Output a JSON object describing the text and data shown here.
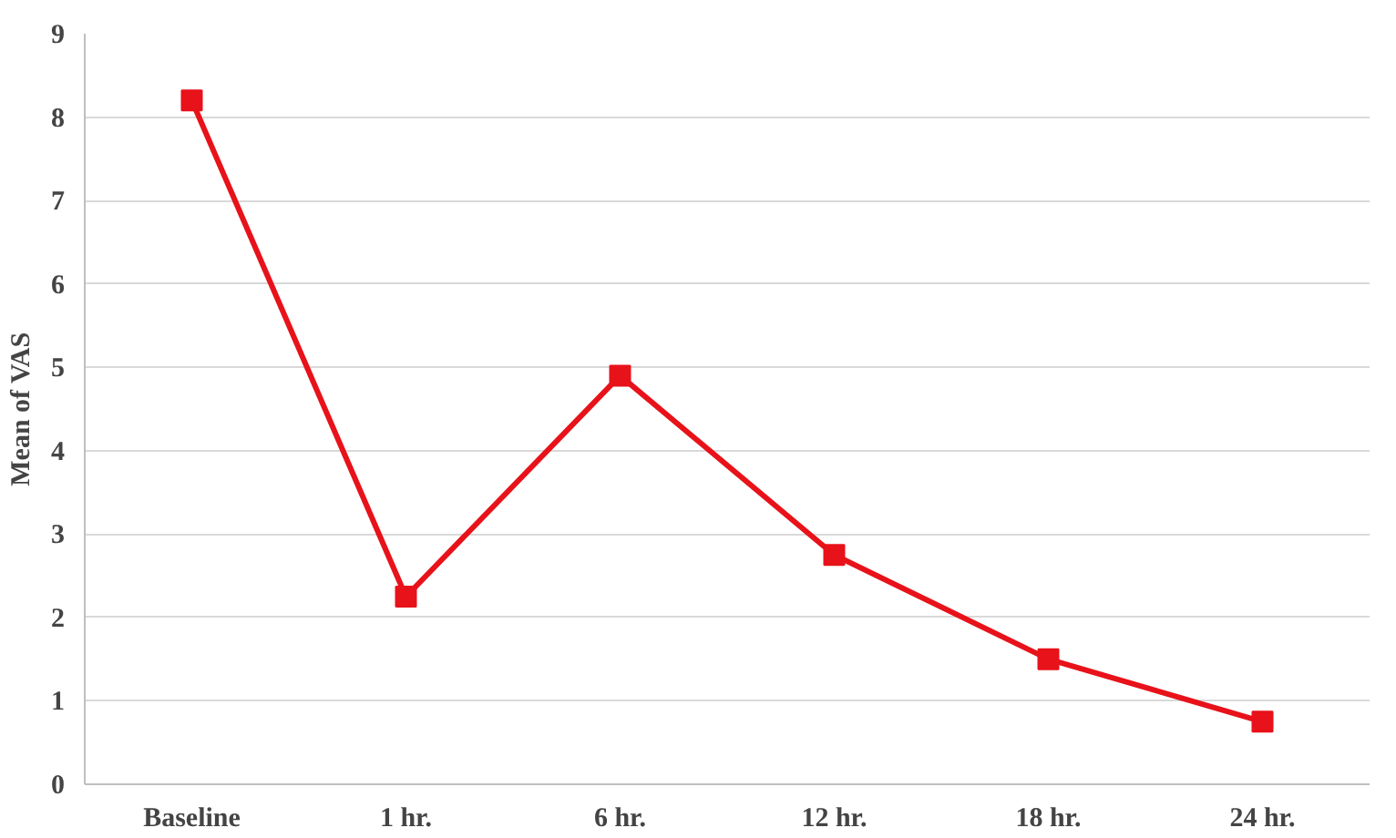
{
  "chart_data": {
    "type": "line",
    "ylabel": "Mean of VAS",
    "categories": [
      "Baseline",
      "1 hr.",
      "6 hr.",
      "12 hr.",
      "18 hr.",
      "24 hr."
    ],
    "series": [
      {
        "color": "#e8121a",
        "values": [
          8.2,
          2.25,
          4.9,
          2.75,
          1.5,
          0.75
        ]
      }
    ],
    "ylim": [
      0,
      9
    ],
    "yticks": [
      0,
      1,
      2,
      3,
      4,
      5,
      6,
      7,
      8,
      9
    ],
    "grid": "y",
    "marker": "square",
    "line_style": "solid"
  }
}
